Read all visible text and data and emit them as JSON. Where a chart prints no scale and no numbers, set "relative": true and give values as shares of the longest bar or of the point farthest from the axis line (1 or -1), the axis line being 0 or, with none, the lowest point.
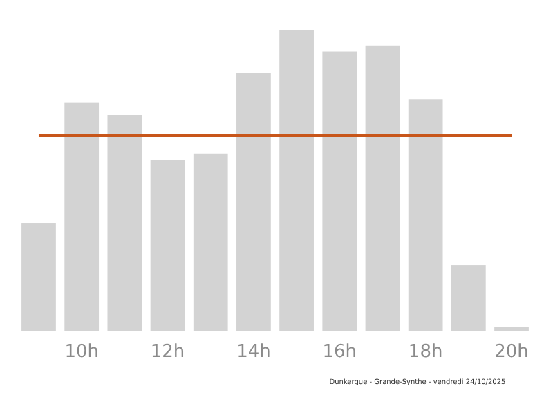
{
  "chart_data": {
    "type": "bar",
    "relative": true,
    "categories": [
      null,
      "10h",
      null,
      "12h",
      null,
      "14h",
      null,
      "16h",
      null,
      "18h",
      null,
      "20h"
    ],
    "values": [
      0.36,
      0.76,
      0.72,
      0.57,
      0.59,
      0.86,
      1,
      0.93,
      0.95,
      0.77,
      0.22,
      0.014
    ],
    "color": "#d3d3d3",
    "ref_lines": [
      {
        "axis": "y",
        "value": 0.65,
        "color": "#c8561a"
      }
    ],
    "annotations": [
      "Dunkerque - Grande-Synthe - vendredi 24/10/2025"
    ]
  }
}
